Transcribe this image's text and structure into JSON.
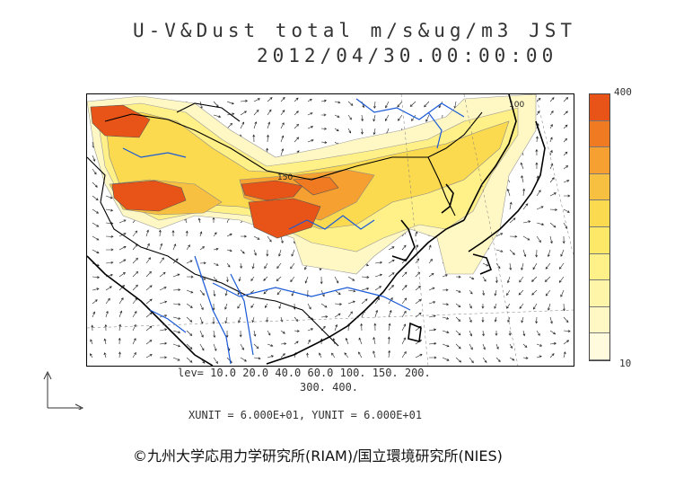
{
  "title": {
    "line1": "U-V&Dust total m/s&ug/m3 JST",
    "line2": "2012/04/30.00:00:00"
  },
  "colorbar": {
    "max_label": "400",
    "min_label": "10",
    "colors": [
      "#e85418",
      "#f07a22",
      "#f5a030",
      "#f8c040",
      "#fbda50",
      "#fde868",
      "#fff088",
      "#fff5a8",
      "#fff8c4",
      "#fffbdc"
    ]
  },
  "contour_levels": {
    "line1": "lev= 10.0 20.0 40.0 60.0 100. 150. 200.",
    "line2": "300. 400."
  },
  "units": {
    "text": "XUNIT = 6.000E+01, YUNIT = 6.000E+01"
  },
  "map_labels": {
    "label_150": "150",
    "label_100": "100"
  },
  "copyright": "©九州大学応用力学研究所(RIAM)/国立環境研究所(NIES)",
  "icons": {
    "vector_reference": "vector-reference-axes-icon"
  }
}
